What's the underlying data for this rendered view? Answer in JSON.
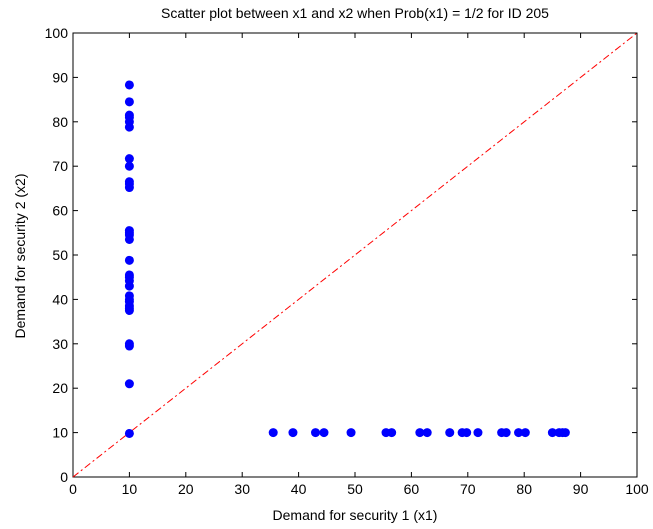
{
  "chart_data": {
    "type": "scatter",
    "title": "Scatter plot between x1 and x2 when Prob(x1) = 1/2 for ID 205",
    "xlabel": "Demand for security 1 (x1)",
    "ylabel": "Demand for security 2 (x2)",
    "xlim": [
      0,
      100
    ],
    "ylim": [
      0,
      100
    ],
    "xticks": [
      0,
      10,
      20,
      30,
      40,
      50,
      60,
      70,
      80,
      90,
      100
    ],
    "yticks": [
      0,
      10,
      20,
      30,
      40,
      50,
      60,
      70,
      80,
      90,
      100
    ],
    "grid": false,
    "colors": {
      "points": "#0000ff",
      "reference_line": "#ff0000",
      "axes": "#000000"
    },
    "reference_line": {
      "x": [
        0,
        100
      ],
      "y": [
        0,
        100
      ],
      "style": "dash-dot"
    },
    "series": [
      {
        "x": [
          10,
          10,
          10,
          10,
          10,
          10,
          10,
          10,
          10,
          10,
          10,
          10,
          10,
          10,
          10,
          10,
          10,
          10,
          10,
          10,
          10,
          10,
          10,
          10,
          10,
          10,
          10,
          10,
          10,
          10,
          35.5,
          39,
          43,
          44.5,
          49.3,
          55.5,
          56.5,
          61.5,
          62.8,
          66.8,
          69,
          69.8,
          71.8,
          76,
          76.8,
          79,
          80.2,
          85,
          86.2,
          86.8,
          87.3
        ],
        "y": [
          88.3,
          84.5,
          81.5,
          80,
          78.8,
          71.7,
          70,
          66.5,
          65.2,
          55.5,
          54.5,
          53.5,
          48.8,
          45.5,
          44.2,
          43,
          40.8,
          39.5,
          38,
          37.5,
          30,
          29.5,
          21,
          9.8,
          55,
          45,
          40,
          38.5,
          81,
          66,
          10,
          10,
          10,
          10,
          10,
          10,
          10,
          10,
          10,
          10,
          10,
          10,
          10,
          10,
          10,
          10,
          10,
          10,
          10,
          10,
          10
        ]
      }
    ]
  }
}
